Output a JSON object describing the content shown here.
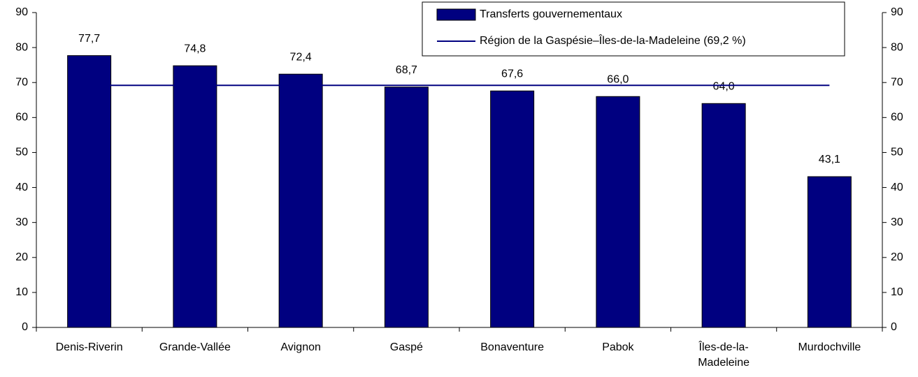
{
  "chart_data": {
    "type": "bar",
    "categories": [
      "Denis-Riverin",
      "Grande-Vallée",
      "Avignon",
      "Gaspé",
      "Bonaventure",
      "Pabok",
      "Îles-de-la-Madeleine",
      "Murdochville"
    ],
    "series": [
      {
        "name": "Transferts gouvernementaux",
        "type": "bar",
        "color": "#000080",
        "values": [
          77.7,
          74.8,
          72.4,
          68.7,
          67.6,
          66.0,
          64.0,
          43.1
        ],
        "value_labels": [
          "77,7",
          "74,8",
          "72,4",
          "68,7",
          "67,6",
          "66,0",
          "64,0",
          "43,1"
        ]
      },
      {
        "name": "Région de la Gaspésie–Îles-de-la-Madeleine (69,2 %)",
        "type": "line",
        "color": "#000080",
        "values": [
          69.2,
          69.2,
          69.2,
          69.2,
          69.2,
          69.2,
          69.2,
          69.2
        ]
      }
    ],
    "ylim": [
      0,
      90
    ],
    "yticks": [
      0,
      10,
      20,
      30,
      40,
      50,
      60,
      70,
      80,
      90
    ],
    "y2lim": [
      0,
      90
    ],
    "y2ticks": [
      0,
      10,
      20,
      30,
      40,
      50,
      60,
      70,
      80,
      90
    ],
    "grid": false
  }
}
